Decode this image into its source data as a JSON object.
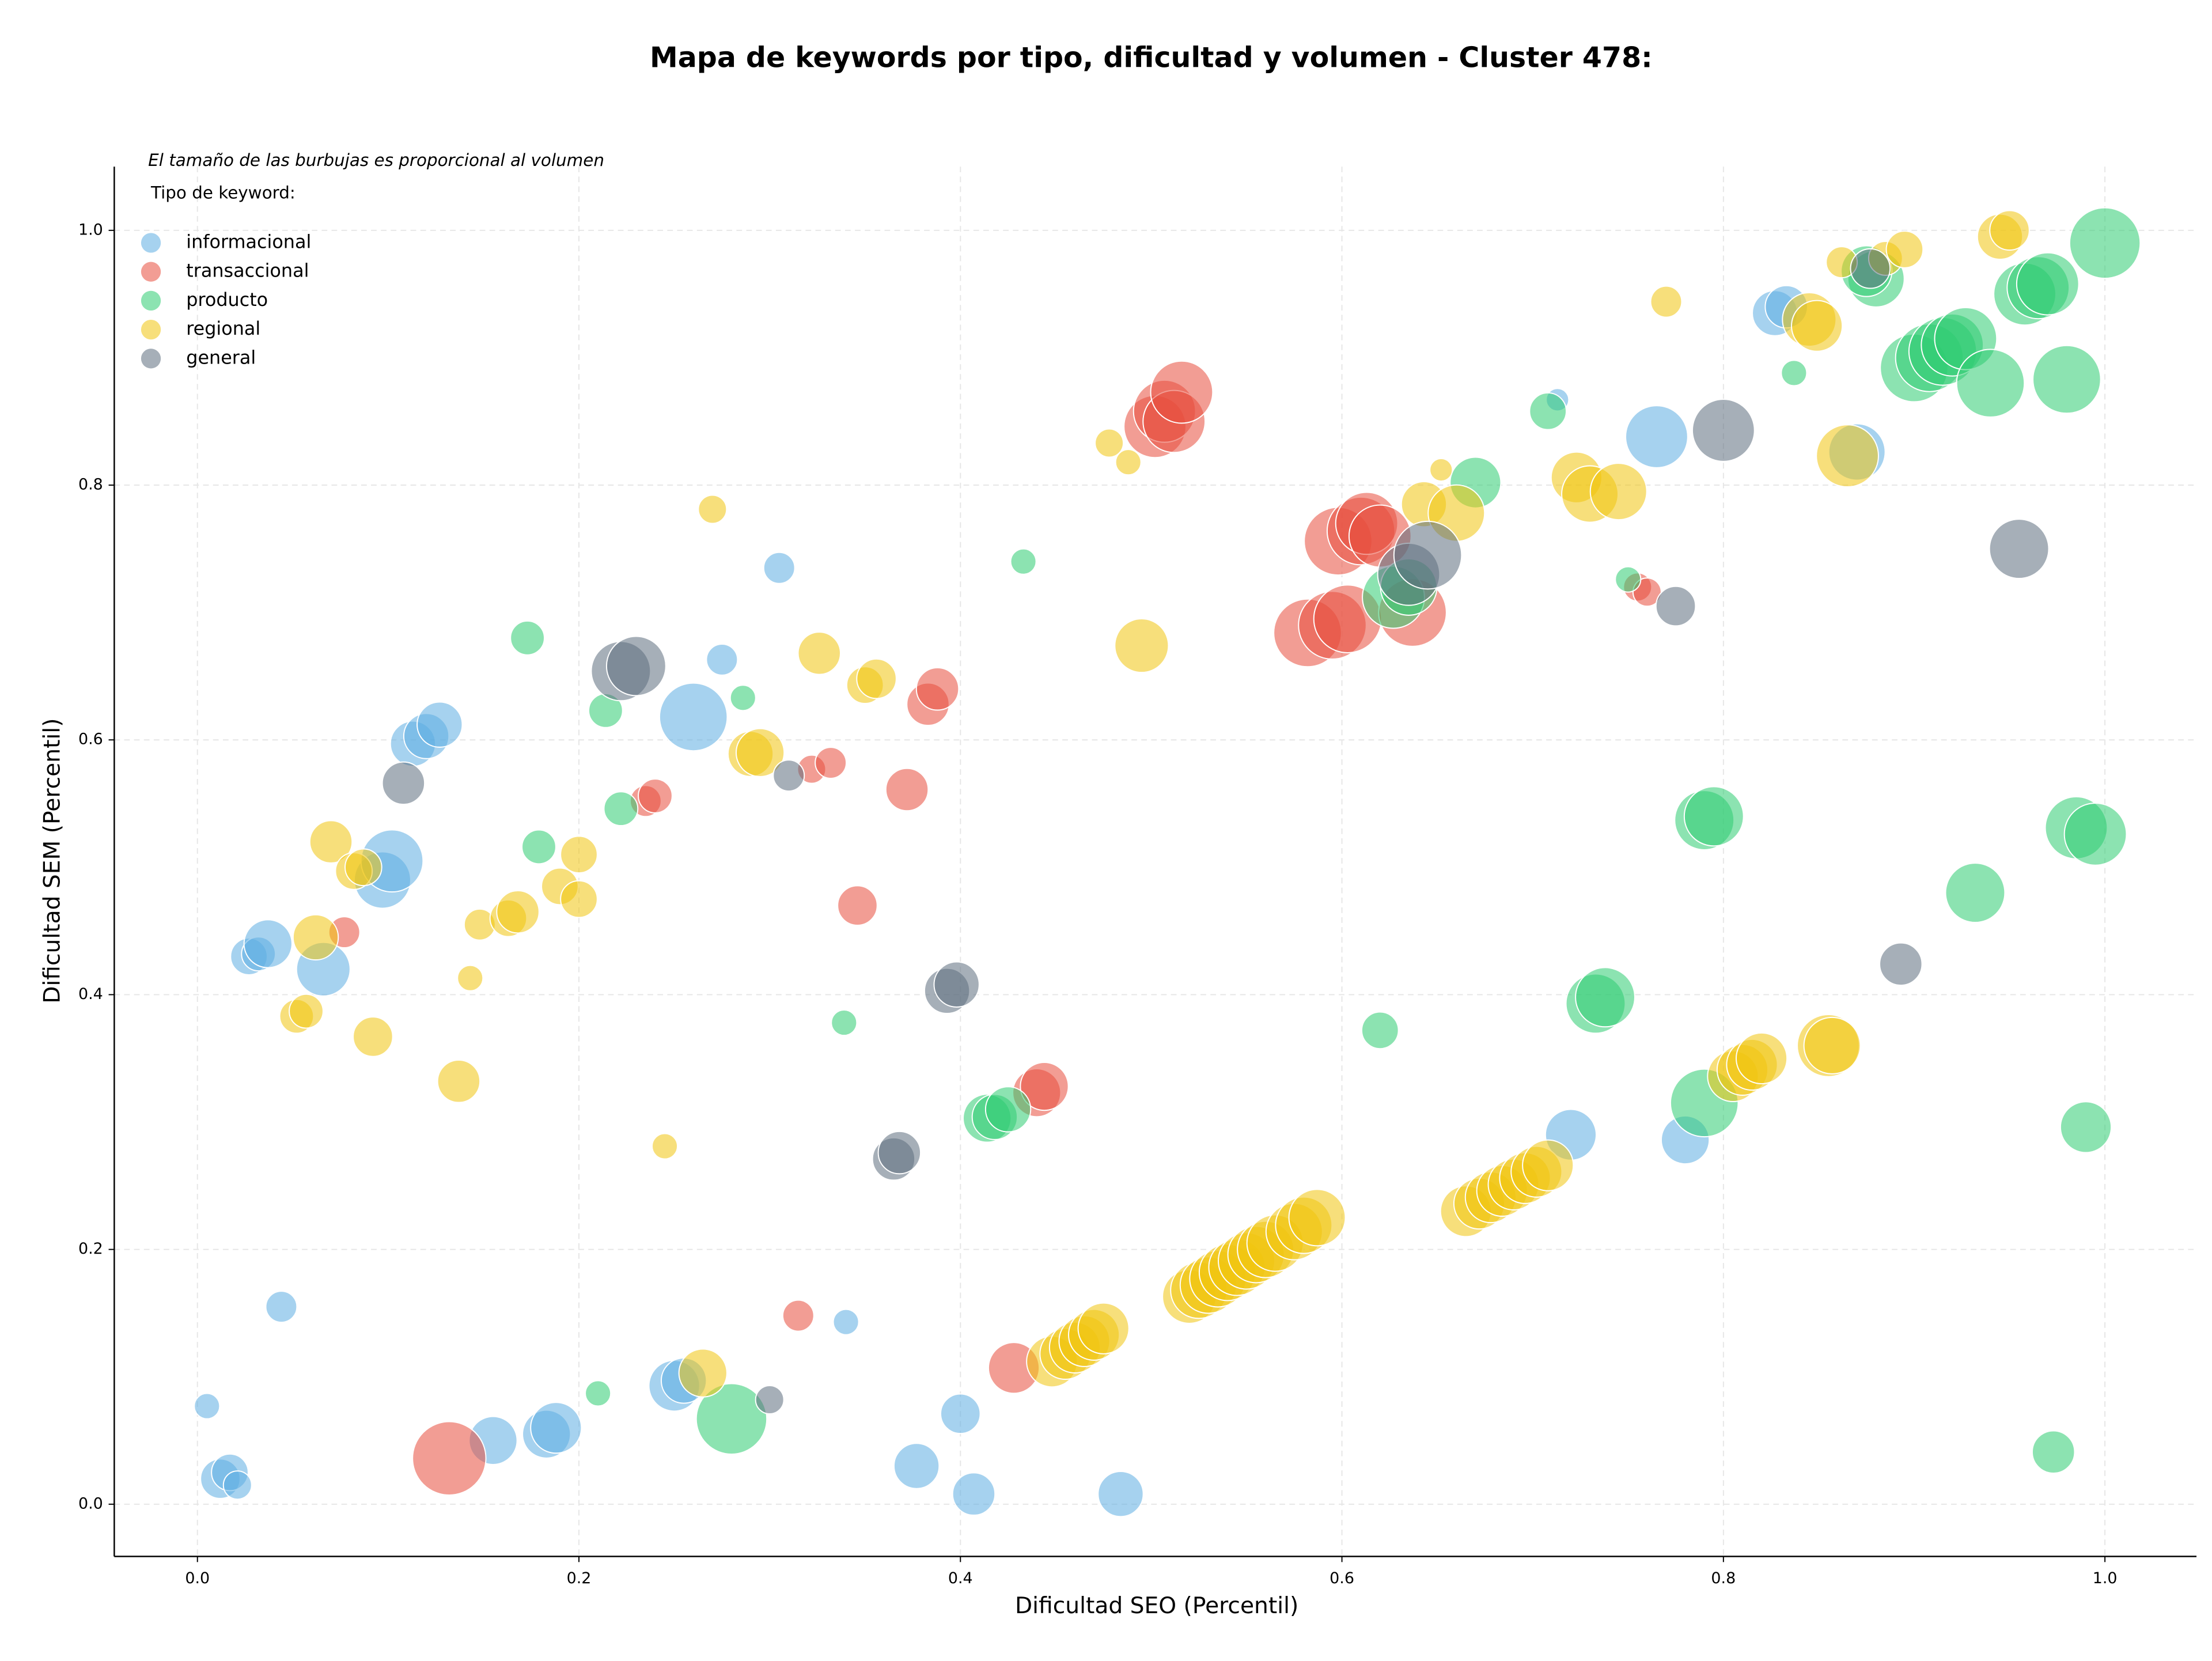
{
  "chart_data": {
    "type": "scatter",
    "title": "Mapa de keywords por tipo, dificultad y volumen - Cluster 478:",
    "annotation": "El tamaño de las burbujas es proporcional al volumen",
    "legend_title": "Tipo de keyword:",
    "legend": "upper left",
    "xlabel": "Dificultad SEO (Percentil)",
    "ylabel": "Dificultad SEM (Percentil)",
    "xlim": [
      -0.0436,
      1.048
    ],
    "ylim": [
      -0.041,
      1.05
    ],
    "xticks": [
      {
        "value": 0,
        "label": "0.0"
      },
      0.2,
      0.4,
      0.6,
      0.8,
      {
        "value": 1,
        "label": "1.0"
      }
    ],
    "yticks": [
      {
        "value": 0,
        "label": "0.0"
      },
      0.2,
      0.4,
      0.6,
      0.8,
      {
        "value": 1,
        "label": "1.0"
      }
    ],
    "grid": true,
    "series": [
      {
        "name": "informacional",
        "color": "#5DADE2",
        "x": [
          0.005,
          0.012,
          0.017,
          0.021,
          0.044,
          0.027,
          0.032,
          0.037,
          0.066,
          0.097,
          0.102,
          0.113,
          0.12,
          0.127,
          0.155,
          0.183,
          0.188,
          0.25,
          0.255,
          0.26,
          0.275,
          0.305,
          0.34,
          0.377,
          0.4,
          0.407,
          0.484,
          0.713,
          0.72,
          0.765,
          0.78,
          0.827,
          0.833,
          0.87
        ],
        "values": [
          0.077,
          0.02,
          0.025,
          0.015,
          0.155,
          0.43,
          0.432,
          0.44,
          0.42,
          0.49,
          0.505,
          0.597,
          0.603,
          0.612,
          0.05,
          0.055,
          0.06,
          0.093,
          0.097,
          0.618,
          0.663,
          0.735,
          0.143,
          0.03,
          0.071,
          0.008,
          0.008,
          0.867,
          0.29,
          0.838,
          0.286,
          0.935,
          0.94,
          0.826
        ],
        "size": [
          81,
          196,
          169,
          100,
          121,
          169,
          144,
          289,
          361,
          400,
          484,
          256,
          256,
          256,
          289,
          289,
          324,
          324,
          256,
          576,
          121,
          121,
          81,
          256,
          196,
          225,
          256,
          64,
          324,
          484,
          289,
          256,
          225,
          400
        ]
      },
      {
        "name": "transaccional",
        "color": "#E74C3C",
        "x": [
          0.077,
          0.132,
          0.235,
          0.24,
          0.315,
          0.322,
          0.332,
          0.346,
          0.372,
          0.383,
          0.388,
          0.428,
          0.44,
          0.444,
          0.502,
          0.507,
          0.512,
          0.516,
          0.582,
          0.595,
          0.603,
          0.598,
          0.61,
          0.613,
          0.62,
          0.637,
          0.755,
          0.76
        ],
        "values": [
          0.449,
          0.036,
          0.552,
          0.556,
          0.148,
          0.577,
          0.582,
          0.47,
          0.561,
          0.628,
          0.64,
          0.107,
          0.323,
          0.328,
          0.846,
          0.858,
          0.85,
          0.873,
          0.684,
          0.69,
          0.695,
          0.756,
          0.764,
          0.77,
          0.76,
          0.7,
          0.72,
          0.716
        ],
        "size": [
          121,
          676,
          121,
          144,
          121,
          100,
          121,
          196,
          225,
          225,
          225,
          324,
          289,
          289,
          484,
          484,
          484,
          484,
          576,
          576,
          576,
          576,
          576,
          484,
          484,
          576,
          100,
          100
        ]
      },
      {
        "name": "producto",
        "color": "#2ECC71",
        "x": [
          0.173,
          0.179,
          0.21,
          0.214,
          0.222,
          0.28,
          0.286,
          0.339,
          0.414,
          0.418,
          0.425,
          0.433,
          0.62,
          0.627,
          0.635,
          0.67,
          0.708,
          0.75,
          0.733,
          0.738,
          0.79,
          0.79,
          0.795,
          0.837,
          0.88,
          0.875,
          0.9,
          0.908,
          0.915,
          0.92,
          0.927,
          0.932,
          0.94,
          0.958,
          0.965,
          0.97,
          0.98,
          0.973,
          0.985,
          0.995,
          0.99,
          1.0
        ],
        "values": [
          0.68,
          0.516,
          0.087,
          0.623,
          0.546,
          0.067,
          0.633,
          0.378,
          0.303,
          0.304,
          0.31,
          0.74,
          0.372,
          0.712,
          0.72,
          0.802,
          0.858,
          0.726,
          0.393,
          0.398,
          0.315,
          0.537,
          0.54,
          0.888,
          0.962,
          0.968,
          0.892,
          0.9,
          0.905,
          0.91,
          0.915,
          0.48,
          0.88,
          0.95,
          0.955,
          0.958,
          0.883,
          0.041,
          0.531,
          0.526,
          0.296,
          0.99
        ],
        "size": [
          144,
          144,
          81,
          144,
          144,
          625,
          81,
          81,
          289,
          256,
          256,
          81,
          169,
          484,
          400,
          324,
          169,
          81,
          441,
          441,
          576,
          441,
          441,
          81,
          400,
          324,
          576,
          576,
          576,
          484,
          484,
          441,
          576,
          484,
          484,
          484,
          576,
          225,
          484,
          484,
          324,
          625
        ]
      },
      {
        "name": "regional",
        "color": "#F1C40F",
        "x": [
          0.052,
          0.057,
          0.062,
          0.07,
          0.082,
          0.087,
          0.092,
          0.137,
          0.143,
          0.148,
          0.163,
          0.168,
          0.19,
          0.2,
          0.2,
          0.245,
          0.265,
          0.27,
          0.29,
          0.295,
          0.326,
          0.35,
          0.356,
          0.478,
          0.488,
          0.495,
          0.52,
          0.525,
          0.53,
          0.535,
          0.54,
          0.545,
          0.55,
          0.555,
          0.56,
          0.565,
          0.575,
          0.58,
          0.587,
          0.448,
          0.455,
          0.46,
          0.465,
          0.47,
          0.475,
          0.652,
          0.643,
          0.66,
          0.665,
          0.672,
          0.678,
          0.684,
          0.69,
          0.696,
          0.702,
          0.708,
          0.723,
          0.73,
          0.745,
          0.77,
          0.805,
          0.81,
          0.815,
          0.82,
          0.855,
          0.857,
          0.862,
          0.845,
          0.849,
          0.865,
          0.885,
          0.895,
          0.945,
          0.95
        ],
        "values": [
          0.383,
          0.387,
          0.445,
          0.52,
          0.497,
          0.5,
          0.367,
          0.332,
          0.413,
          0.455,
          0.46,
          0.465,
          0.485,
          0.475,
          0.51,
          0.281,
          0.103,
          0.781,
          0.589,
          0.59,
          0.668,
          0.643,
          0.648,
          0.833,
          0.818,
          0.674,
          0.163,
          0.168,
          0.172,
          0.177,
          0.182,
          0.186,
          0.191,
          0.196,
          0.2,
          0.205,
          0.214,
          0.219,
          0.225,
          0.112,
          0.118,
          0.123,
          0.128,
          0.133,
          0.138,
          0.812,
          0.785,
          0.778,
          0.23,
          0.236,
          0.241,
          0.246,
          0.251,
          0.256,
          0.261,
          0.266,
          0.806,
          0.793,
          0.795,
          0.944,
          0.336,
          0.341,
          0.345,
          0.35,
          0.36,
          0.36,
          0.975,
          0.93,
          0.925,
          0.823,
          0.978,
          0.985,
          0.995,
          1.0
        ],
        "size": [
          144,
          144,
          256,
          225,
          169,
          169,
          196,
          225,
          81,
          121,
          169,
          225,
          169,
          169,
          169,
          81,
          289,
          100,
          256,
          289,
          225,
          169,
          196,
          100,
          81,
          361,
          361,
          400,
          400,
          400,
          400,
          400,
          400,
          400,
          400,
          400,
          400,
          400,
          400,
          324,
          324,
          324,
          324,
          324,
          324,
          64,
          256,
          400,
          324,
          324,
          324,
          324,
          324,
          324,
          324,
          324,
          324,
          400,
          400,
          121,
          324,
          324,
          324,
          324,
          484,
          400,
          121,
          361,
          324,
          484,
          144,
          169,
          256,
          196
        ]
      },
      {
        "name": "general",
        "color": "#5D6D7E",
        "x": [
          0.108,
          0.222,
          0.23,
          0.3,
          0.31,
          0.365,
          0.368,
          0.393,
          0.398,
          0.635,
          0.645,
          0.775,
          0.8,
          0.877,
          0.893,
          0.955
        ],
        "values": [
          0.566,
          0.654,
          0.658,
          0.082,
          0.572,
          0.271,
          0.276,
          0.403,
          0.408,
          0.73,
          0.745,
          0.705,
          0.843,
          0.97,
          0.424,
          0.75
        ],
        "size": [
          225,
          441,
          441,
          100,
          121,
          225,
          225,
          256,
          256,
          484,
          576,
          196,
          484,
          196,
          225,
          441
        ]
      }
    ]
  }
}
